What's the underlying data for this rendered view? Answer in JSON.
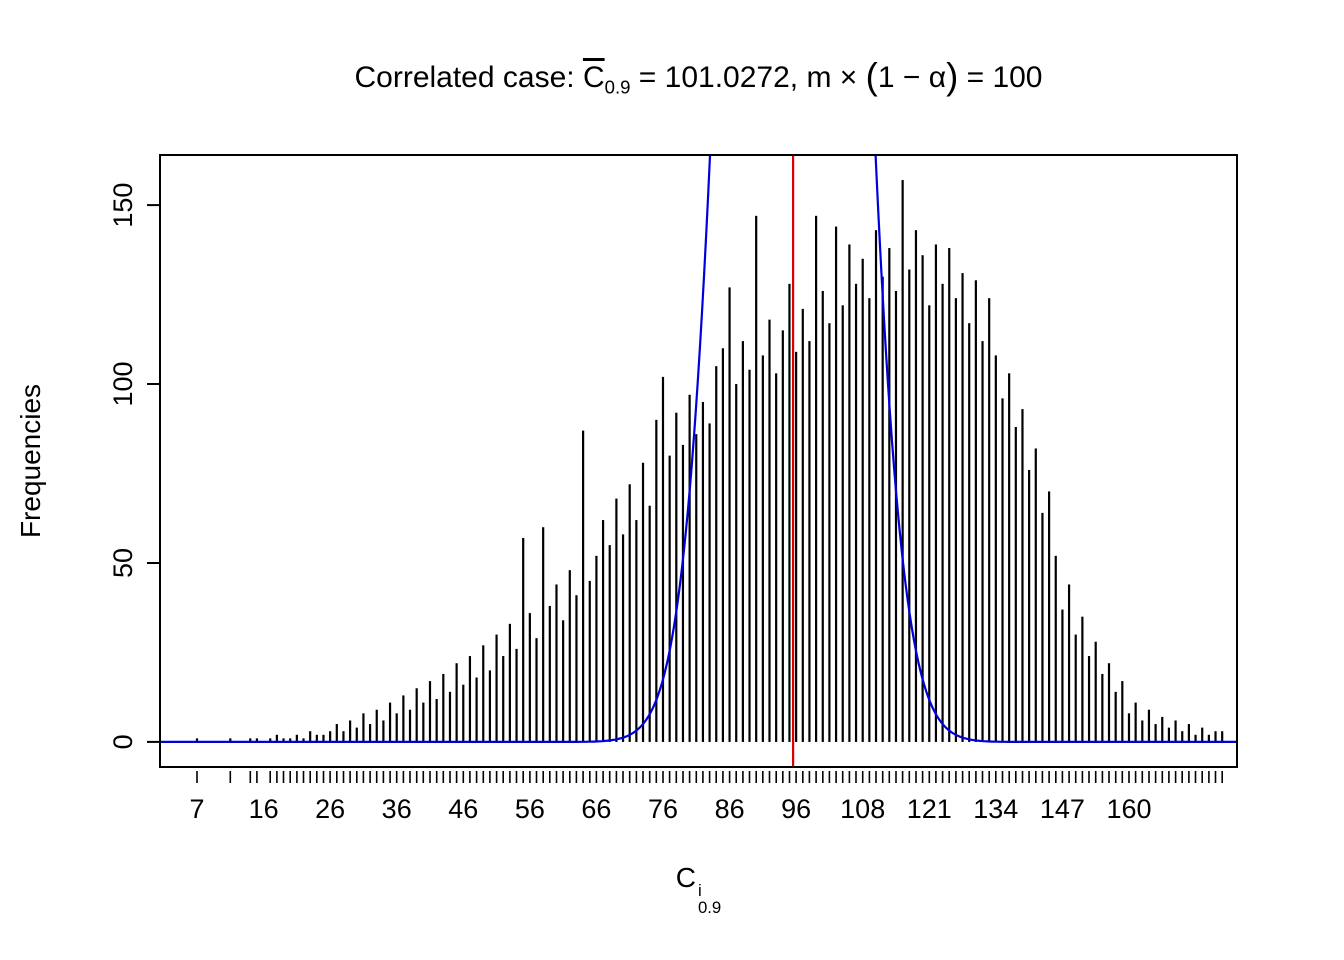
{
  "title": {
    "prefix": "Correlated case: ",
    "c": "C",
    "c_sub": "0.9",
    "mean_eq": " = 101.0272,  m",
    "times": " × ",
    "open": "(",
    "body": "1 − α",
    "close": ")",
    "tail": " = 100"
  },
  "xlabel": {
    "base": "C",
    "sup": "i",
    "sub": "0.9"
  },
  "ylabel": "Frequencies",
  "chart_data": {
    "type": "bar",
    "title": "Correlated case: C̄_0.9 = 101.0272, m × (1 − α) = 100",
    "xlabel": "C_0.9^i",
    "ylabel": "Frequencies",
    "ylim": [
      0,
      164
    ],
    "y_ticks": [
      0,
      50,
      100,
      150
    ],
    "x_tick_labels": [
      "7",
      "16",
      "26",
      "36",
      "46",
      "56",
      "66",
      "76",
      "86",
      "96",
      "108",
      "121",
      "134",
      "147",
      "160"
    ],
    "x_tick_label_every": 10,
    "bar_color": "#000000",
    "grid": false,
    "frequencies": [
      1,
      0,
      0,
      0,
      0,
      1,
      0,
      0,
      1,
      1,
      0,
      1,
      2,
      1,
      1,
      2,
      1,
      3,
      2,
      2,
      3,
      5,
      3,
      6,
      4,
      8,
      5,
      9,
      6,
      11,
      8,
      13,
      9,
      15,
      11,
      17,
      12,
      19,
      14,
      22,
      16,
      24,
      18,
      27,
      20,
      30,
      24,
      33,
      26,
      57,
      36,
      29,
      60,
      38,
      44,
      34,
      48,
      41,
      87,
      45,
      52,
      62,
      55,
      68,
      58,
      72,
      62,
      78,
      66,
      90,
      102,
      80,
      92,
      83,
      97,
      86,
      95,
      89,
      105,
      110,
      127,
      100,
      112,
      104,
      147,
      108,
      118,
      103,
      115,
      128,
      109,
      121,
      112,
      147,
      126,
      117,
      144,
      122,
      139,
      128,
      135,
      124,
      143,
      130,
      138,
      126,
      157,
      132,
      143,
      136,
      122,
      139,
      128,
      138,
      124,
      131,
      117,
      129,
      112,
      124,
      108,
      96,
      103,
      88,
      93,
      76,
      82,
      64,
      70,
      52,
      37,
      44,
      30,
      35,
      24,
      28,
      19,
      22,
      14,
      17,
      8,
      11,
      6,
      9,
      5,
      7,
      4,
      6,
      3,
      5,
      2,
      4,
      2,
      3,
      3
    ],
    "red_line": {
      "index": 89.55,
      "value": 101.0272,
      "color": "#DE0000"
    },
    "blue_curve": {
      "center_index": 89.5,
      "sigma_index": 7.1,
      "amplitude": 760,
      "color": "#0000DD"
    }
  }
}
